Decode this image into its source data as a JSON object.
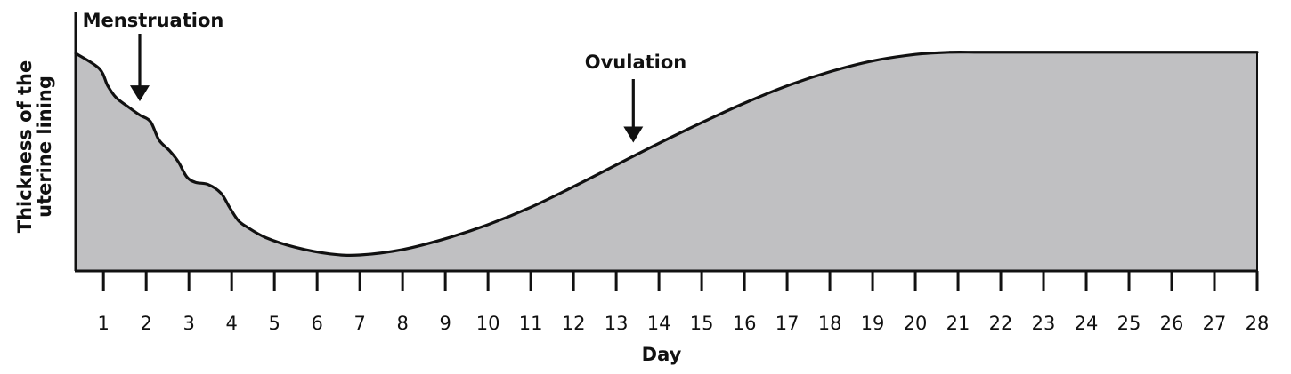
{
  "chart_data": {
    "type": "area",
    "title": "",
    "xlabel": "Day",
    "ylabel_lines": [
      "Thickness of the",
      "uterine lining"
    ],
    "xlim": [
      0.35,
      28
    ],
    "ylim": [
      0,
      10
    ],
    "x_ticks": [
      1,
      2,
      3,
      4,
      5,
      6,
      7,
      8,
      9,
      10,
      11,
      12,
      13,
      14,
      15,
      16,
      17,
      18,
      19,
      20,
      21,
      22,
      23,
      24,
      25,
      26,
      27,
      28
    ],
    "grid": false,
    "series": [
      {
        "name": "Thickness of the uterine lining",
        "x": [
          0.35,
          0.9,
          1.1,
          1.3,
          1.6,
          1.85,
          2.1,
          2.3,
          2.55,
          2.75,
          2.95,
          3.15,
          3.45,
          3.75,
          3.95,
          4.15,
          4.35,
          4.8,
          5.5,
          6.3,
          7.0,
          8.0,
          9.0,
          10.0,
          11.0,
          12.0,
          13.0,
          14.0,
          15.0,
          16.0,
          17.0,
          18.0,
          19.0,
          20.0,
          20.8,
          21.5,
          22.5,
          23.5,
          24.5,
          25.5,
          26.5,
          27.5,
          28.0
        ],
        "values": [
          10.0,
          9.3,
          8.5,
          7.95,
          7.5,
          7.15,
          6.85,
          6.0,
          5.5,
          5.0,
          4.3,
          4.05,
          3.95,
          3.55,
          2.9,
          2.3,
          2.0,
          1.5,
          1.05,
          0.75,
          0.7,
          0.95,
          1.45,
          2.1,
          2.9,
          3.85,
          4.85,
          5.85,
          6.8,
          7.7,
          8.5,
          9.15,
          9.65,
          9.95,
          10.05,
          10.05,
          10.05,
          10.05,
          10.05,
          10.05,
          10.05,
          10.05,
          10.05
        ]
      }
    ],
    "annotations": [
      {
        "text": "Menstruation",
        "x": 1.85,
        "y": 7.7
      },
      {
        "text": "Ovulation",
        "x": 13.4,
        "y": 5.8
      }
    ]
  },
  "colors": {
    "fill": "#c0c0c2",
    "line": "#111111",
    "background": "#ffffff"
  }
}
